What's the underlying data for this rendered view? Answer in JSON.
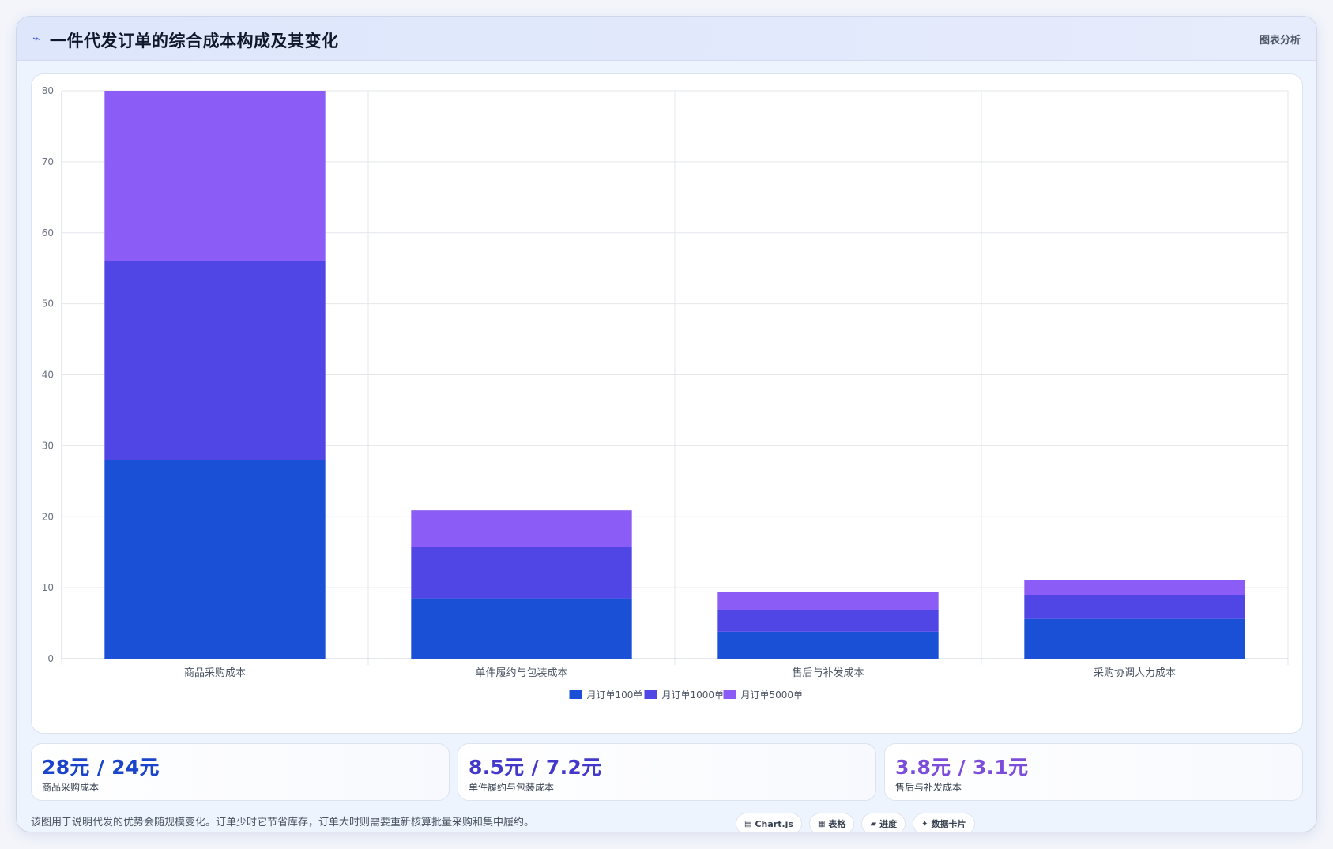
{
  "header": {
    "title": "一件代发订单的综合成本构成及其变化",
    "right_label": "图表分析"
  },
  "colors": {
    "series_100": "#1a50d6",
    "series_1000": "#4f46e5",
    "series_5000": "#8b5cf6",
    "grid": "#e5e7eb",
    "axis_text": "#6b7280"
  },
  "chart_data": {
    "type": "bar",
    "stacked": true,
    "categories": [
      "商品采购成本",
      "单件履约与包装成本",
      "售后与补发成本",
      "采购协调人力成本"
    ],
    "series": [
      {
        "name": "月订单100单",
        "values": [
          28,
          8.5,
          3.8,
          5.6
        ]
      },
      {
        "name": "月订单1000单",
        "values": [
          28,
          7.2,
          3.1,
          3.4
        ]
      },
      {
        "name": "月订单5000单",
        "values": [
          24,
          5.2,
          2.5,
          2.1
        ]
      }
    ],
    "yticks": [
      "0",
      "10",
      "20",
      "30",
      "40",
      "50",
      "60",
      "70",
      "80"
    ],
    "ylim": [
      0,
      80
    ],
    "grid": true,
    "legend": "bottom"
  },
  "stats": [
    {
      "value": "28元 / 24元",
      "label": "商品采购成本",
      "color": "#1a44c9"
    },
    {
      "value": "8.5元 / 7.2元",
      "label": "单件履约与包装成本",
      "color": "#4338ca"
    },
    {
      "value": "3.8元 / 3.1元",
      "label": "售后与补发成本",
      "color": "#7c4ddb"
    }
  ],
  "footer": {
    "note": "该图用于说明代发的优势会随规模变化。订单少时它节省库存，订单大时则需要重新核算批量采购和集中履约。"
  },
  "tags": [
    {
      "icon": "▤",
      "icon_name": "chart-icon",
      "label": "Chart.js"
    },
    {
      "icon": "▦",
      "icon_name": "table-icon",
      "label": "表格"
    },
    {
      "icon": "▰",
      "icon_name": "progress-icon",
      "label": "进度"
    },
    {
      "icon": "✦",
      "icon_name": "card-icon",
      "label": "数据卡片"
    }
  ]
}
